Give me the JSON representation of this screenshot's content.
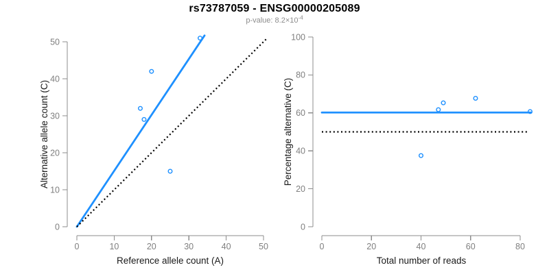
{
  "header": {
    "title": "rs73787059 - ENSG00000205089",
    "p_value": {
      "label": "p-value: ",
      "mantissa": "8.2",
      "times": "×",
      "base": "10",
      "exponent": "-4"
    }
  },
  "colors": {
    "point_blue": "#1e90ff",
    "fit_line_blue": "#1e90ff",
    "dotted_black": "#000000",
    "axis_gray": "#8c8c8c",
    "tick_label_gray": "#7f7f7f",
    "axis_title_color": "#1a1a1a",
    "title_black": "#000000",
    "subtitle_gray": "#8c8c8c"
  },
  "chart_data": [
    {
      "type": "scatter",
      "name": "allele-counts-scatter",
      "xlabel": "Reference allele count (A)",
      "ylabel": "Alternative allele count (C)",
      "xlim": [
        0,
        50
      ],
      "ylim": [
        0,
        50
      ],
      "xticks": [
        0,
        10,
        20,
        30,
        40,
        50
      ],
      "yticks": [
        0,
        10,
        20,
        30,
        40,
        50
      ],
      "grid": false,
      "legend": null,
      "points": [
        [
          33,
          51
        ],
        [
          20,
          42
        ],
        [
          17,
          32
        ],
        [
          18,
          29
        ],
        [
          25,
          15
        ]
      ],
      "lines": [
        {
          "name": "fit-line",
          "style": "solid",
          "color": "#1e90ff",
          "x": [
            0,
            34.2
          ],
          "y": [
            0,
            51.7
          ]
        },
        {
          "name": "identity-line",
          "style": "dotted",
          "color": "#000000",
          "x": [
            0,
            51
          ],
          "y": [
            0,
            51
          ]
        }
      ]
    },
    {
      "type": "scatter",
      "name": "percentage-vs-reads-scatter",
      "xlabel": "Total number of reads",
      "ylabel": "Percentage alternative (C)",
      "xlim": [
        0,
        80
      ],
      "ylim": [
        0,
        100
      ],
      "xticks": [
        0,
        20,
        40,
        60,
        80
      ],
      "yticks": [
        0,
        20,
        40,
        60,
        80,
        100
      ],
      "grid": false,
      "legend": null,
      "points": [
        [
          40,
          37.5
        ],
        [
          47,
          61.7
        ],
        [
          49,
          65.3
        ],
        [
          62,
          67.7
        ],
        [
          84,
          60.7
        ]
      ],
      "lines": [
        {
          "name": "mean-percentage-line",
          "style": "solid",
          "color": "#1e90ff",
          "x": [
            0,
            84.5
          ],
          "y": [
            60.2,
            60.2
          ]
        },
        {
          "name": "expected-50-line",
          "style": "dotted",
          "color": "#000000",
          "x": [
            0,
            83
          ],
          "y": [
            50,
            50
          ]
        }
      ]
    }
  ]
}
